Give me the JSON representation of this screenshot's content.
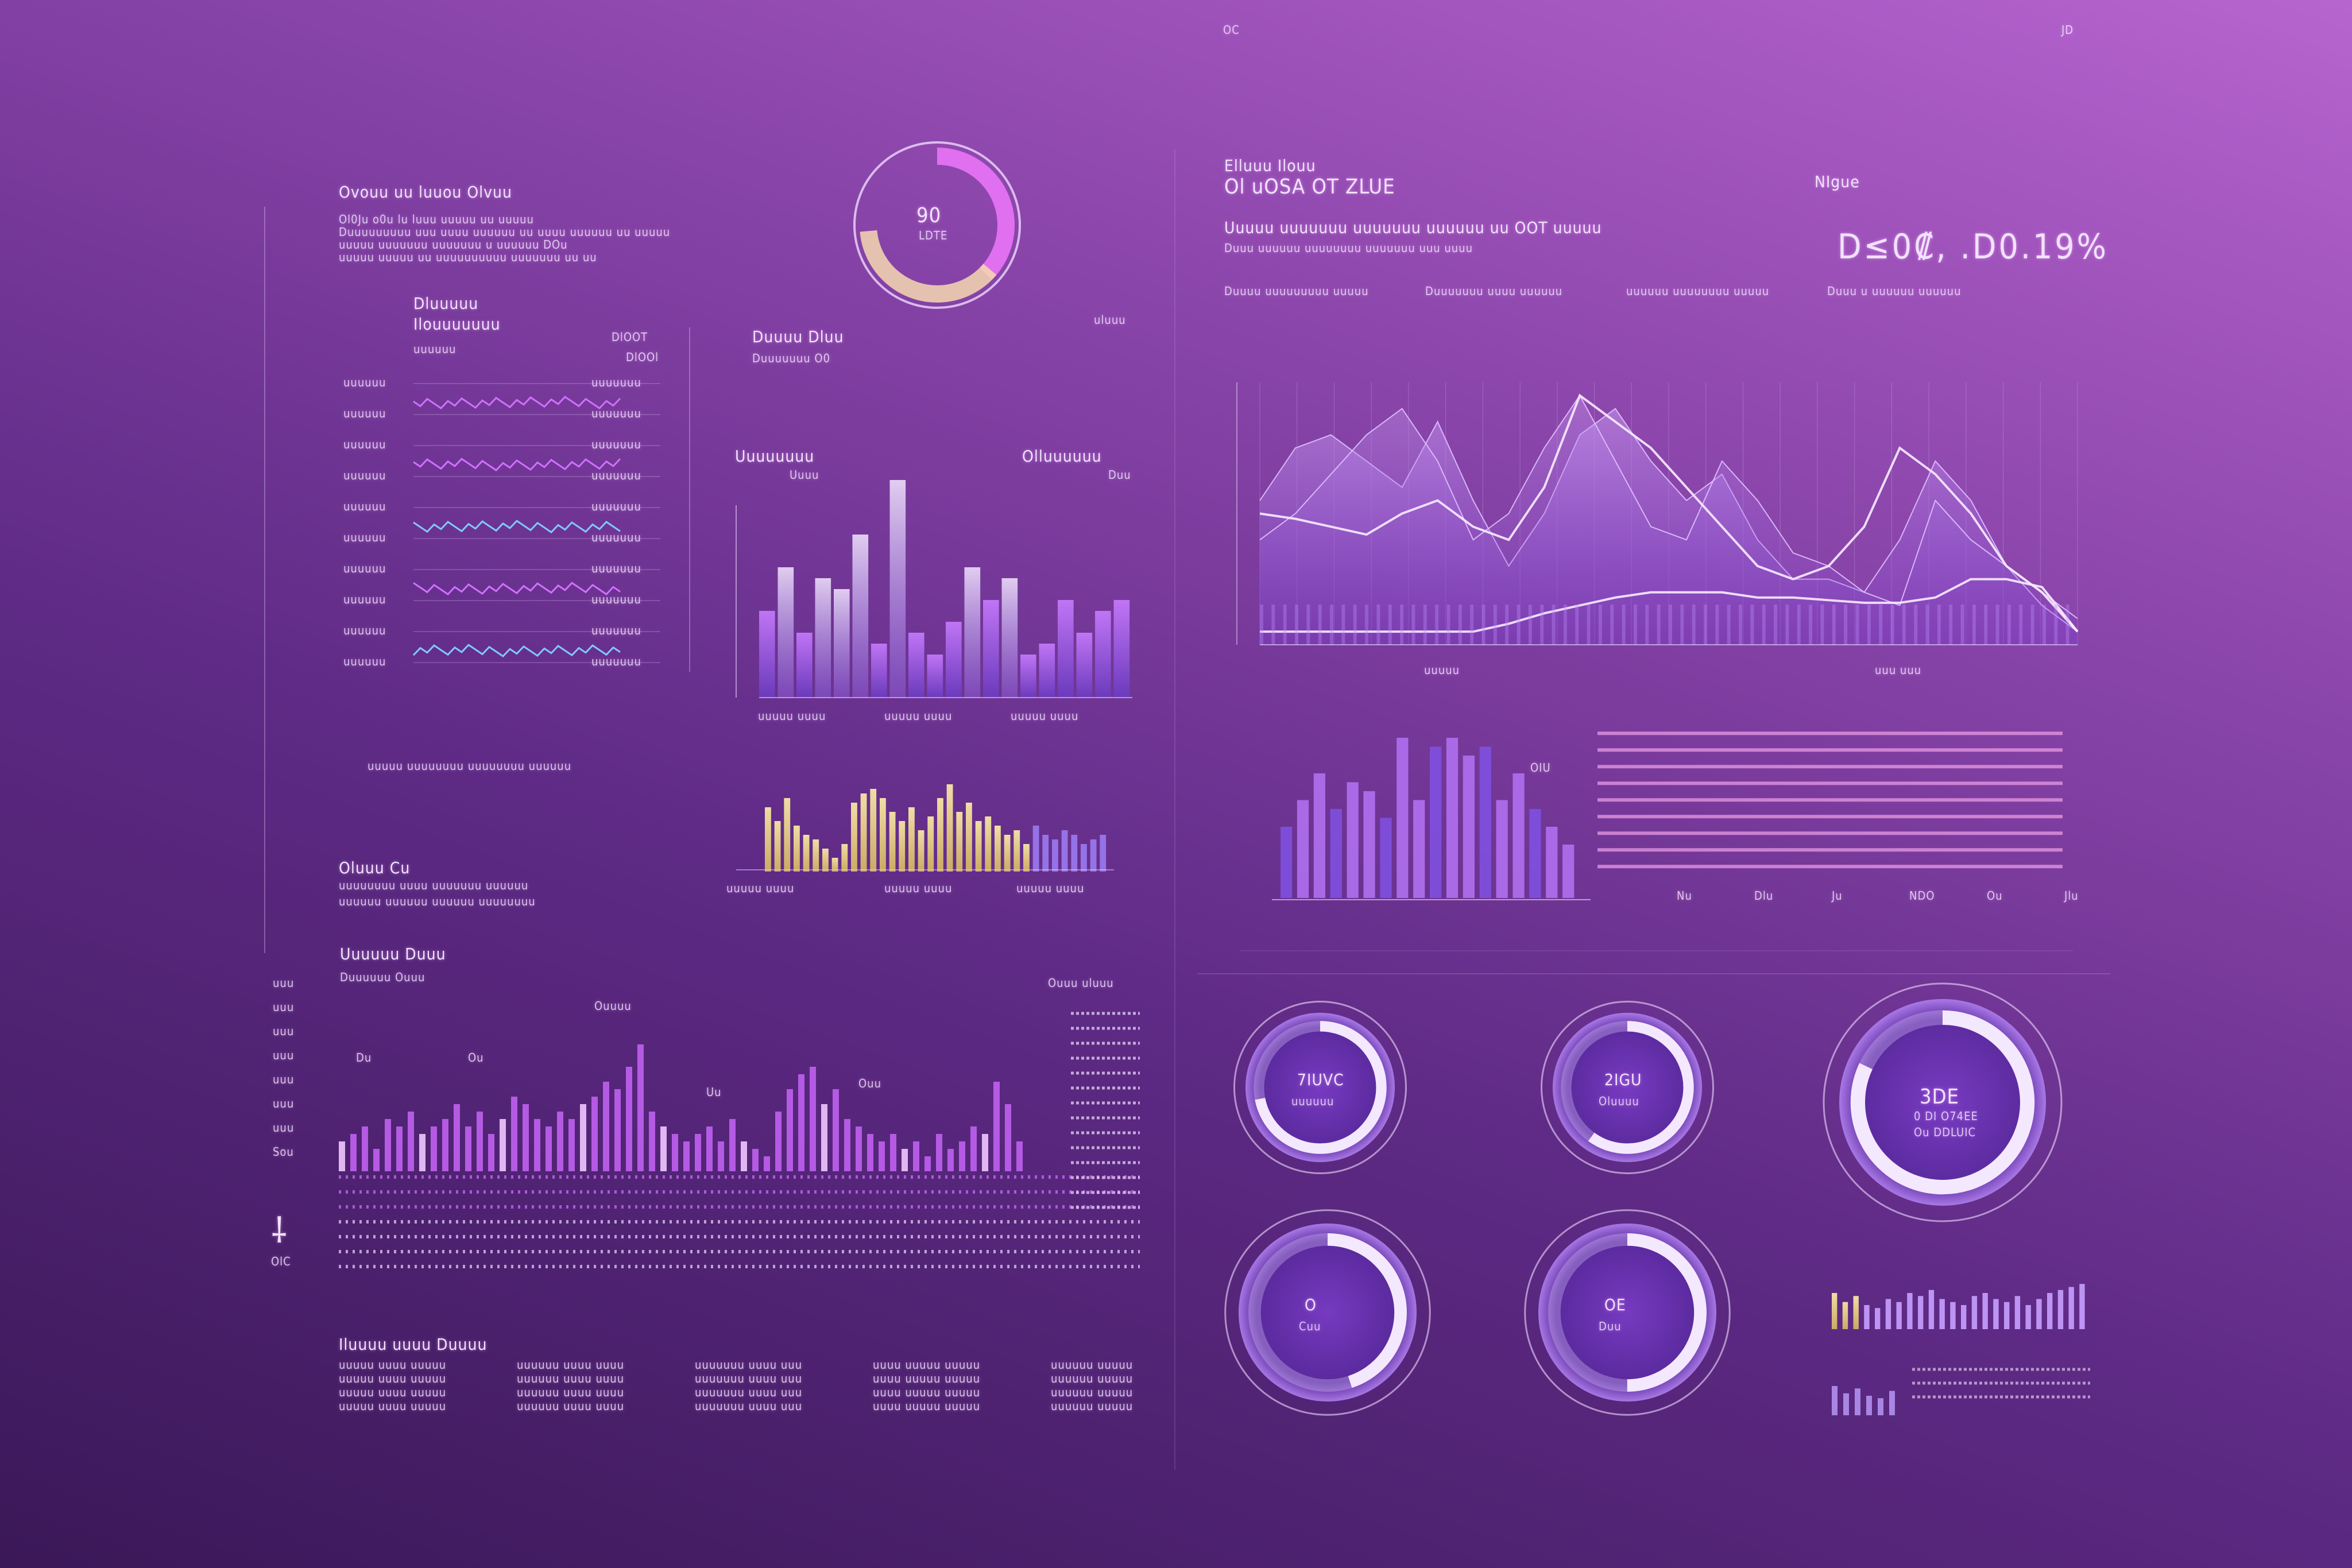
{
  "corner": {
    "top_mid": "OC",
    "top_right": "JD"
  },
  "left_panel": {
    "title": "Ovouu uu luuou Olvuu",
    "desc": [
      "Ol0Ju o0u lu luuu uuuuu uu uuuuu",
      "Duuuuuuuuu uuu uuuu uuuuuu uu uuuu uuuuuu uu uuuuu",
      "uuuuu uuuuuuu uuuuuuu u uuuuuu DOu",
      "uuuuu uuuuu uu uuuuuuuuuu uuuuuuu uu uu"
    ],
    "gauge": {
      "value": "90",
      "unit": "LDTE",
      "level": 0.75
    },
    "list_title": "Dluuuuu",
    "list_subtitle": "Ilouuuuuuu",
    "list_caption": "uuuuuu",
    "list_head_a": "DlOOT",
    "list_head_b": "DlOOl",
    "list_rows": [
      {
        "label": "uuuuuu",
        "value": "uuuuuuu"
      },
      {
        "label": "uuuuuu",
        "value": "uuuuuuu"
      },
      {
        "label": "uuuuuu",
        "value": "uuuuuuu"
      },
      {
        "label": "uuuuuu",
        "value": "uuuuuuu"
      },
      {
        "label": "uuuuuu",
        "value": "uuuuuuu"
      },
      {
        "label": "uuuuuu",
        "value": "uuuuuuu"
      },
      {
        "label": "uuuuuu",
        "value": "uuuuuuu"
      },
      {
        "label": "uuuuuu",
        "value": "uuuuuuu"
      },
      {
        "label": "uuuuuu",
        "value": "uuuuuuu"
      },
      {
        "label": "uuuuuu",
        "value": "uuuuuuu"
      }
    ],
    "list_footer": "uuuuu uuuuuuuu uuuuuuuu uuuuuu",
    "note_title": "Oluuu Cu",
    "note_lines": [
      "uuuuuuuu uuuu uuuuuuu uuuuuu",
      "uuuuuu uuuuuu uuuuuu uuuuuuuu"
    ],
    "mid_title": "Duuuu Dluu",
    "mid_sub": "Duuuuuuu O0",
    "mid_right": "uluuu",
    "mid_chart_left_title": "Uuuuuuuu",
    "mid_chart_left_sub": "Uuuu",
    "mid_chart_right_title": "Olluuuuuu",
    "mid_chart_right_sub": "Duu",
    "mid_labels": [
      "uuuuu uuuu",
      "uuuuu uuuu",
      "uuuuu uuuu"
    ],
    "yellow_labels": [
      "uuuuu uuuu",
      "uuuuu uuuu",
      "uuuuu uuuu"
    ],
    "bottom_title": "Uuuuuu Duuu",
    "bottom_sub": "Duuuuuu Ouuu",
    "bottom_right": "Ouuu uluuu",
    "bottom_annotations": [
      "Ouuuu",
      "Du",
      "Ou",
      "Uu",
      "Ouu"
    ],
    "side_labels": [
      "uuu",
      "uuu",
      "uuu",
      "uuu",
      "uuu",
      "uuu",
      "uuu",
      "Sou"
    ],
    "footer_title": "Iluuuu uuuu Duuuu",
    "footer_cols": [
      "uuuuu uuuu uuuuu",
      "uuuuuu uuuu uuuu",
      "uuuuuuu uuuu uuu",
      "uuuu uuuuu uuuuu",
      "uuuuuu uuuuu"
    ],
    "logo_caption": "OlC"
  },
  "right_panel": {
    "kicker": "Elluuu Ilouu",
    "title": "Ol uOSA OT ZLUE",
    "tag": "NIgue",
    "subtitle": "Uuuuu uuuuuuu uuuuuuu uuuuuu uu OOT uuuuu",
    "desc": "Duuu uuuuuu uuuuuuuu uuuuuuu uuu uuuu",
    "big_value": "D≤0₡, .D0.19%",
    "info_cols": [
      "Duuuu uuuuuuuuu uuuuu",
      "Duuuuuuu uuuu uuuuuu",
      "uuuuuu uuuuuuuu uuuuu",
      "Duuu u uuuuuu uuuuuu"
    ],
    "axis_left": "uuuuu",
    "axis_right": "uuu uuu",
    "bar_label": "OIU",
    "hbar_ticks": [
      "Nu",
      "Dlu",
      "Ju",
      "NDO",
      "Ou",
      "Jlu"
    ],
    "donuts": [
      {
        "value": "7IUVC",
        "label": "uuuuuu",
        "level": 0.72
      },
      {
        "value": "2IGU",
        "label": "Oluuuu",
        "level": 0.6
      },
      {
        "value": "3DE",
        "label": "0 DI O74EE",
        "sub": "Ou DDLUIC",
        "level": 0.82
      },
      {
        "value": "O",
        "label": "Cuu",
        "level": 0.45
      },
      {
        "value": "OE",
        "label": "Duu",
        "level": 0.5
      }
    ]
  },
  "colors": {
    "accent": "#c05cf0",
    "highlight": "#f2e0a0",
    "bar": "#9a6ae8",
    "line": "#f3e6ff"
  },
  "chart_data": [
    {
      "type": "bar",
      "name_key": "mid",
      "values": [
        40,
        60,
        30,
        55,
        50,
        75,
        25,
        100,
        30,
        20,
        35,
        60,
        45,
        55,
        20,
        25,
        45,
        30,
        40,
        45
      ]
    },
    {
      "type": "bar",
      "name_key": "yellow",
      "values": [
        70,
        55,
        80,
        50,
        40,
        35,
        25,
        15,
        30,
        75,
        85,
        90,
        80,
        65,
        55,
        70,
        45,
        60,
        80,
        95,
        65,
        75,
        55,
        60,
        50,
        40,
        45,
        30,
        50,
        40,
        35,
        45,
        40,
        30,
        35,
        40
      ]
    },
    {
      "type": "bar",
      "name_key": "bottom",
      "values": [
        20,
        25,
        30,
        15,
        35,
        30,
        40,
        25,
        30,
        35,
        45,
        30,
        40,
        25,
        35,
        50,
        45,
        35,
        30,
        40,
        35,
        45,
        50,
        60,
        55,
        70,
        85,
        40,
        30,
        25,
        20,
        25,
        30,
        20,
        35,
        20,
        15,
        10,
        40,
        55,
        65,
        70,
        45,
        55,
        35,
        30,
        25,
        20,
        25,
        15,
        20,
        10,
        25,
        15,
        20,
        30,
        25,
        60,
        45,
        20
      ]
    },
    {
      "type": "area",
      "name_key": "area",
      "x_count": 24,
      "series": [
        {
          "values": [
            55,
            75,
            80,
            70,
            60,
            85,
            55,
            30,
            50,
            80,
            90,
            70,
            55,
            65,
            40,
            25,
            25,
            20,
            40,
            70,
            55,
            30,
            15,
            5
          ]
        },
        {
          "values": [
            40,
            50,
            65,
            80,
            90,
            70,
            40,
            50,
            75,
            95,
            70,
            45,
            40,
            70,
            55,
            35,
            30,
            20,
            15,
            55,
            40,
            30,
            20,
            10
          ]
        },
        {
          "values": [
            50,
            48,
            45,
            42,
            50,
            55,
            45,
            40,
            60,
            95,
            85,
            75,
            60,
            45,
            30,
            25,
            30,
            45,
            75,
            65,
            50,
            30,
            20,
            5
          ]
        },
        {
          "values": [
            5,
            5,
            5,
            5,
            5,
            5,
            5,
            8,
            12,
            15,
            18,
            20,
            20,
            20,
            18,
            18,
            17,
            16,
            16,
            18,
            25,
            25,
            22,
            5
          ]
        }
      ],
      "ylim": [
        0,
        100
      ]
    },
    {
      "type": "bar",
      "name_key": "smallbar",
      "values": [
        40,
        55,
        70,
        50,
        65,
        60,
        45,
        90,
        55,
        85,
        90,
        80,
        85,
        55,
        70,
        50,
        40,
        30
      ]
    },
    {
      "type": "line",
      "name_key": "hlines",
      "values": [
        92,
        82,
        72,
        62,
        52,
        42,
        32,
        22,
        12
      ]
    },
    {
      "type": "bar",
      "name_key": "brbars",
      "values": [
        60,
        45,
        55,
        40,
        35,
        50,
        45,
        60,
        55,
        65,
        50,
        45,
        40,
        55,
        60,
        50,
        45,
        55,
        40,
        50,
        60,
        65,
        70,
        75
      ]
    }
  ]
}
